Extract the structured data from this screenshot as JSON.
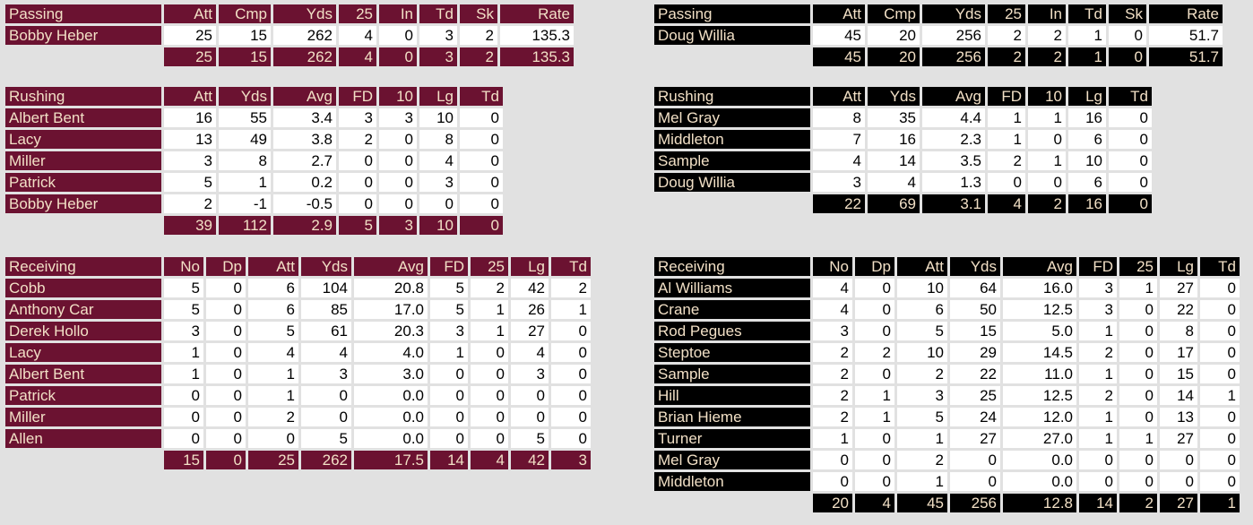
{
  "colors": {
    "team_a": "#6b1231",
    "team_b": "#000000",
    "label_text": "#f2e0c6",
    "cell_bg": "#ffffff",
    "page_bg": "#e1e1e1"
  },
  "team_a": {
    "passing": {
      "headers": [
        "Passing",
        "Att",
        "Cmp",
        "Yds",
        "25",
        "In",
        "Td",
        "Sk",
        "Rate"
      ],
      "rows": [
        [
          "Bobby Heber",
          "25",
          "15",
          "262",
          "4",
          "0",
          "3",
          "2",
          "135.3"
        ]
      ],
      "total": [
        "",
        "25",
        "15",
        "262",
        "4",
        "0",
        "3",
        "2",
        "135.3"
      ]
    },
    "rushing": {
      "headers": [
        "Rushing",
        "Att",
        "Yds",
        "Avg",
        "FD",
        "10",
        "Lg",
        "Td"
      ],
      "rows": [
        [
          "Albert Bent",
          "16",
          "55",
          "3.4",
          "3",
          "3",
          "10",
          "0"
        ],
        [
          "Lacy",
          "13",
          "49",
          "3.8",
          "2",
          "0",
          "8",
          "0"
        ],
        [
          "Miller",
          "3",
          "8",
          "2.7",
          "0",
          "0",
          "4",
          "0"
        ],
        [
          "Patrick",
          "5",
          "1",
          "0.2",
          "0",
          "0",
          "3",
          "0"
        ],
        [
          "Bobby Heber",
          "2",
          "-1",
          "-0.5",
          "0",
          "0",
          "0",
          "0"
        ]
      ],
      "total": [
        "",
        "39",
        "112",
        "2.9",
        "5",
        "3",
        "10",
        "0"
      ]
    },
    "receiving": {
      "headers": [
        "Receiving",
        "No",
        "Dp",
        "Att",
        "Yds",
        "Avg",
        "FD",
        "25",
        "Lg",
        "Td"
      ],
      "rows": [
        [
          "Cobb",
          "5",
          "0",
          "6",
          "104",
          "20.8",
          "5",
          "2",
          "42",
          "2"
        ],
        [
          "Anthony Car",
          "5",
          "0",
          "6",
          "85",
          "17.0",
          "5",
          "1",
          "26",
          "1"
        ],
        [
          "Derek Hollo",
          "3",
          "0",
          "5",
          "61",
          "20.3",
          "3",
          "1",
          "27",
          "0"
        ],
        [
          "Lacy",
          "1",
          "0",
          "4",
          "4",
          "4.0",
          "1",
          "0",
          "4",
          "0"
        ],
        [
          "Albert Bent",
          "1",
          "0",
          "1",
          "3",
          "3.0",
          "0",
          "0",
          "3",
          "0"
        ],
        [
          "Patrick",
          "0",
          "0",
          "1",
          "0",
          "0.0",
          "0",
          "0",
          "0",
          "0"
        ],
        [
          "Miller",
          "0",
          "0",
          "2",
          "0",
          "0.0",
          "0",
          "0",
          "0",
          "0"
        ],
        [
          "Allen",
          "0",
          "0",
          "0",
          "5",
          "0.0",
          "0",
          "0",
          "5",
          "0"
        ]
      ],
      "total": [
        "",
        "15",
        "0",
        "25",
        "262",
        "17.5",
        "14",
        "4",
        "42",
        "3"
      ]
    }
  },
  "team_b": {
    "passing": {
      "headers": [
        "Passing",
        "Att",
        "Cmp",
        "Yds",
        "25",
        "In",
        "Td",
        "Sk",
        "Rate"
      ],
      "rows": [
        [
          "Doug Willia",
          "45",
          "20",
          "256",
          "2",
          "2",
          "1",
          "0",
          "51.7"
        ]
      ],
      "total": [
        "",
        "45",
        "20",
        "256",
        "2",
        "2",
        "1",
        "0",
        "51.7"
      ]
    },
    "rushing": {
      "headers": [
        "Rushing",
        "Att",
        "Yds",
        "Avg",
        "FD",
        "10",
        "Lg",
        "Td"
      ],
      "rows": [
        [
          "Mel Gray",
          "8",
          "35",
          "4.4",
          "1",
          "1",
          "16",
          "0"
        ],
        [
          "Middleton",
          "7",
          "16",
          "2.3",
          "1",
          "0",
          "6",
          "0"
        ],
        [
          "Sample",
          "4",
          "14",
          "3.5",
          "2",
          "1",
          "10",
          "0"
        ],
        [
          "Doug Willia",
          "3",
          "4",
          "1.3",
          "0",
          "0",
          "6",
          "0"
        ]
      ],
      "total": [
        "",
        "22",
        "69",
        "3.1",
        "4",
        "2",
        "16",
        "0"
      ]
    },
    "receiving": {
      "headers": [
        "Receiving",
        "No",
        "Dp",
        "Att",
        "Yds",
        "Avg",
        "FD",
        "25",
        "Lg",
        "Td"
      ],
      "rows": [
        [
          "Al Williams",
          "4",
          "0",
          "10",
          "64",
          "16.0",
          "3",
          "1",
          "27",
          "0"
        ],
        [
          "Crane",
          "4",
          "0",
          "6",
          "50",
          "12.5",
          "3",
          "0",
          "22",
          "0"
        ],
        [
          "Rod Pegues",
          "3",
          "0",
          "5",
          "15",
          "5.0",
          "1",
          "0",
          "8",
          "0"
        ],
        [
          "Steptoe",
          "2",
          "2",
          "10",
          "29",
          "14.5",
          "2",
          "0",
          "17",
          "0"
        ],
        [
          "Sample",
          "2",
          "0",
          "2",
          "22",
          "11.0",
          "1",
          "0",
          "15",
          "0"
        ],
        [
          "Hill",
          "2",
          "1",
          "3",
          "25",
          "12.5",
          "2",
          "0",
          "14",
          "1"
        ],
        [
          "Brian Hieme",
          "2",
          "1",
          "5",
          "24",
          "12.0",
          "1",
          "0",
          "13",
          "0"
        ],
        [
          "Turner",
          "1",
          "0",
          "1",
          "27",
          "27.0",
          "1",
          "1",
          "27",
          "0"
        ],
        [
          "Mel Gray",
          "0",
          "0",
          "2",
          "0",
          "0.0",
          "0",
          "0",
          "0",
          "0"
        ],
        [
          "Middleton",
          "0",
          "0",
          "1",
          "0",
          "0.0",
          "0",
          "0",
          "0",
          "0"
        ]
      ],
      "total": [
        "",
        "20",
        "4",
        "45",
        "256",
        "12.8",
        "14",
        "2",
        "27",
        "1"
      ]
    }
  }
}
